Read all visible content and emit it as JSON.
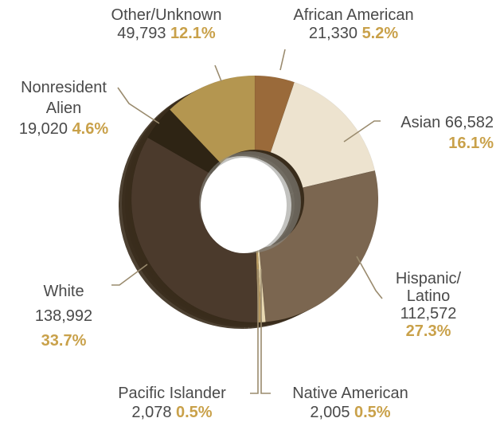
{
  "chart_data": {
    "type": "pie",
    "variant": "donut-3d",
    "title": "",
    "legend": "none",
    "slices": [
      {
        "name": "African American",
        "count": "21,330",
        "value": 5.2,
        "percent": "5.2%",
        "color": "#9a6a3a"
      },
      {
        "name": "Asian",
        "count": "66,582",
        "value": 16.1,
        "percent": "16.1%",
        "color": "#ede3cf"
      },
      {
        "name": "Hispanic/ Latino",
        "count": "112,572",
        "value": 27.3,
        "percent": "27.3%",
        "color": "#7b6650"
      },
      {
        "name": "Native American",
        "count": "2,005",
        "value": 0.5,
        "percent": "0.5%",
        "color": "#e9d9b2"
      },
      {
        "name": "Pacific Islander",
        "count": "2,078",
        "value": 0.5,
        "percent": "0.5%",
        "color": "#b89a62"
      },
      {
        "name": "White",
        "count": "138,992",
        "value": 33.7,
        "percent": "33.7%",
        "color": "#4b3a2c"
      },
      {
        "name": "Nonresident Alien",
        "count": "19,020",
        "value": 4.6,
        "percent": "4.6%",
        "color": "#2e2414"
      },
      {
        "name": "Other/Unknown",
        "count": "49,793",
        "value": 12.1,
        "percent": "12.1%",
        "color": "#b49650"
      }
    ],
    "labels": [
      {
        "lines": [
          "Other/Unknown",
          "49,793 |12.1%"
        ]
      },
      {
        "lines": [
          "African American",
          "21,330 |5.2%"
        ]
      },
      {
        "lines": [
          "Asian 66,582",
          "|16.1%"
        ]
      },
      {
        "lines": [
          "Nonresident",
          "Alien",
          "19,020 |4.6%"
        ]
      },
      {
        "lines": [
          "White",
          "138,992",
          "|33.7%"
        ]
      },
      {
        "lines": [
          "Hispanic/",
          "Latino",
          "112,572",
          "|27.3%"
        ]
      },
      {
        "lines": [
          "Pacific Islander",
          "2,078 |0.5%"
        ]
      },
      {
        "lines": [
          "Native American",
          "2,005 |0.5%"
        ]
      }
    ]
  },
  "colors": {
    "label_text": "#4a4a4a",
    "percent_text": "#c9a14a",
    "leader_line": "#9a8b6e",
    "depth_shadow": "#3a2c1c"
  }
}
